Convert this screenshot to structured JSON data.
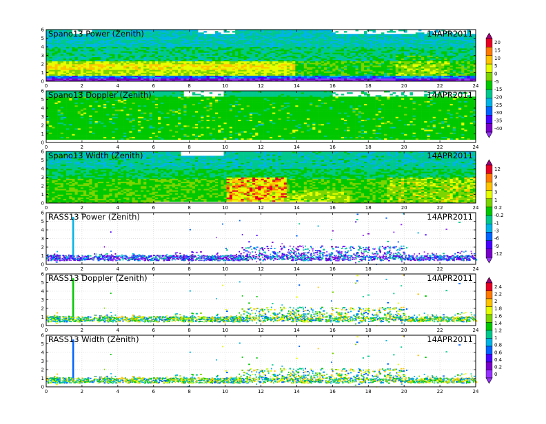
{
  "x_axis": {
    "min": 0,
    "max": 24,
    "ticks": [
      "0",
      "2",
      "4",
      "6",
      "8",
      "10",
      "12",
      "14",
      "16",
      "18",
      "20",
      "22",
      "24"
    ]
  },
  "y_axis": {
    "min": 0,
    "max": 6,
    "ticks": [
      "0",
      "1",
      "2",
      "3",
      "4",
      "5",
      "6"
    ]
  },
  "panels": [
    {
      "title": "Spano13 Power (Zenith)",
      "date": "14APR2011",
      "kind": "spano_power"
    },
    {
      "title": "Spano13 Doppler (Zenith)",
      "date": "14APR2011",
      "kind": "spano_doppler"
    },
    {
      "title": "Spano13 Width (Zenith)",
      "date": "14APR2011",
      "kind": "spano_width"
    },
    {
      "title": "RASS13 Power (Zenith)",
      "date": "14APR2011",
      "kind": "rass_power"
    },
    {
      "title": "RASS13 Doppler (Zenith)",
      "date": "14APR2011",
      "kind": "rass_doppler"
    },
    {
      "title": "RASS13 Width (Zenith)",
      "date": "14APR2011",
      "kind": "rass_width"
    }
  ],
  "colorbars": [
    {
      "labels": [
        "20",
        "15",
        "10",
        "5",
        "0",
        "-5",
        "-15",
        "-20",
        "-25",
        "-30",
        "-35",
        "-40"
      ],
      "colors": [
        "#a0007c",
        "#e60026",
        "#ff7a00",
        "#ffc400",
        "#e6ff00",
        "#7cd400",
        "#00c800",
        "#00c88c",
        "#00b4e6",
        "#0064ff",
        "#4800ff",
        "#7800c8",
        "#9632ff"
      ]
    },
    {
      "labels": [
        "12",
        "9",
        "6",
        "3",
        "1",
        "0.2",
        "-0.2",
        "-1",
        "-3",
        "-6",
        "-9",
        "-12"
      ],
      "colors": [
        "#a0007c",
        "#e60026",
        "#ff7a00",
        "#ffc400",
        "#e6ff00",
        "#7cd400",
        "#00c800",
        "#00c88c",
        "#00b4e6",
        "#0064ff",
        "#4800ff",
        "#7800c8",
        "#9632ff"
      ]
    },
    {
      "labels": [
        "2.4",
        "2.2",
        "2",
        "1.8",
        "1.6",
        "1.4",
        "1.2",
        "1",
        "0.8",
        "0.6",
        "0.4",
        "0.2",
        "0"
      ],
      "colors": [
        "#a0007c",
        "#e60026",
        "#ff7a00",
        "#ffc400",
        "#e6ff00",
        "#7cd400",
        "#00c800",
        "#00c88c",
        "#00b4e6",
        "#0064ff",
        "#4800ff",
        "#7800c8",
        "#9632ff",
        "#9632ff"
      ]
    }
  ],
  "chart_data": {
    "type": "heatmap",
    "description_units": {
      "x": "hour (UTC)",
      "y": "height (km)"
    },
    "xlim": [
      0,
      24
    ],
    "ylim": [
      0,
      6
    ],
    "grid": true,
    "series": [
      {
        "name": "Spano13 Power (Zenith)"
      },
      {
        "name": "Spano13 Doppler (Zenith)"
      },
      {
        "name": "Spano13 Width (Zenith)"
      },
      {
        "name": "RASS13 Power (Zenith)"
      },
      {
        "name": "RASS13 Doppler (Zenith)"
      },
      {
        "name": "RASS13 Width (Zenith)"
      }
    ]
  }
}
